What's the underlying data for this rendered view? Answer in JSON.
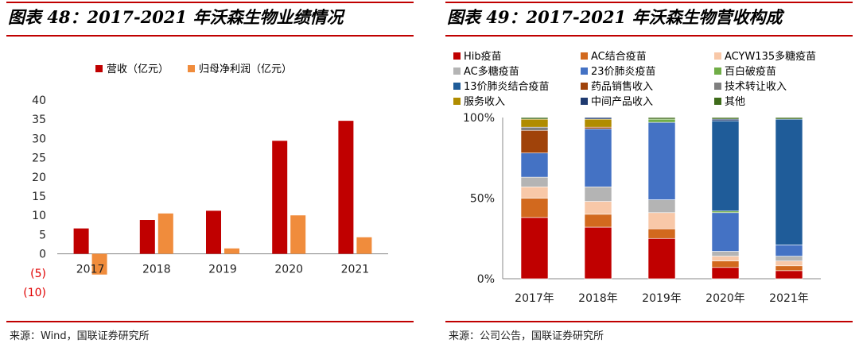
{
  "left_panel": {
    "title": "图表 48：2017-2021 年沃森生物业绩情况",
    "source": "来源：Wind，国联证券研究所"
  },
  "right_panel": {
    "title": "图表 49：2017-2021 年沃森生物营收构成",
    "source": "来源：公司公告，国联证券研究所"
  },
  "colors": {
    "accent_rule": "#c00000",
    "negative_tick": "#e00000"
  },
  "chart_data": [
    {
      "type": "bar",
      "categories": [
        "2017",
        "2018",
        "2019",
        "2020",
        "2021"
      ],
      "series": [
        {
          "name": "营收（亿元）",
          "values": [
            6.6,
            8.8,
            11.2,
            29.4,
            34.6
          ],
          "color": "#c00000"
        },
        {
          "name": "归母净利润（亿元）",
          "values": [
            -5.4,
            10.5,
            1.4,
            10.0,
            4.3
          ],
          "color": "#f08c3c"
        }
      ],
      "ylim": [
        -10,
        40
      ],
      "yticks": [
        "40",
        "35",
        "30",
        "25",
        "20",
        "15",
        "10",
        "5",
        "0",
        "(5)",
        "(10)"
      ],
      "ytick_values": [
        40,
        35,
        30,
        25,
        20,
        15,
        10,
        5,
        0,
        -5,
        -10
      ],
      "legend_position": "top",
      "grid": false
    },
    {
      "type": "bar",
      "stacked": true,
      "percent": true,
      "categories": [
        "2017年",
        "2018年",
        "2019年",
        "2020年",
        "2021年"
      ],
      "yticks": [
        "100%",
        "50%",
        "0%"
      ],
      "ytick_values": [
        100,
        50,
        0
      ],
      "ylim": [
        0,
        100
      ],
      "legend_position": "top",
      "grid": false,
      "series": [
        {
          "name": "Hib疫苗",
          "color": "#c00000",
          "values": [
            38,
            32,
            25,
            7,
            5
          ]
        },
        {
          "name": "AC结合疫苗",
          "color": "#d2691e",
          "values": [
            12,
            8,
            6,
            4,
            3
          ]
        },
        {
          "name": "ACYW135多糖疫苗",
          "color": "#f8c8a8",
          "values": [
            7,
            8,
            10,
            3,
            3
          ]
        },
        {
          "name": "AC多糖疫苗",
          "color": "#b4b4b4",
          "values": [
            6,
            9,
            8,
            3,
            3
          ]
        },
        {
          "name": "23价肺炎疫苗",
          "color": "#4472c4",
          "values": [
            15,
            36,
            48,
            24,
            7
          ]
        },
        {
          "name": "百白破疫苗",
          "color": "#70ad47",
          "values": [
            0,
            0,
            2,
            1,
            0
          ]
        },
        {
          "name": "13价肺炎结合疫苗",
          "color": "#1f5c99",
          "values": [
            0,
            0,
            0,
            56,
            78
          ]
        },
        {
          "name": "药品销售收入",
          "color": "#a0430a",
          "values": [
            14,
            1,
            0,
            0,
            0
          ]
        },
        {
          "name": "技术转让收入",
          "color": "#7f7f7f",
          "values": [
            2,
            0,
            0,
            0,
            0
          ]
        },
        {
          "name": "服务收入",
          "color": "#b08c00",
          "values": [
            5,
            5,
            0,
            0,
            0
          ]
        },
        {
          "name": "中间产品收入",
          "color": "#1f3a70",
          "values": [
            0,
            1,
            0,
            1,
            0
          ]
        },
        {
          "name": "其他",
          "color": "#3e6b1a",
          "values": [
            1,
            0,
            1,
            1,
            1
          ]
        }
      ]
    }
  ]
}
